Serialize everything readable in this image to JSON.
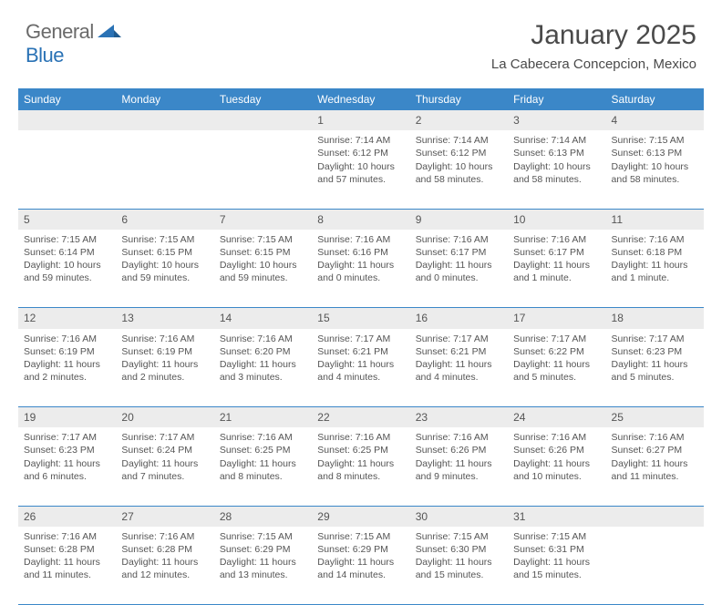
{
  "brand": {
    "part1": "General",
    "part2": "Blue"
  },
  "title": "January 2025",
  "location": "La Cabecera Concepcion, Mexico",
  "colors": {
    "header_bg": "#3b87c8",
    "header_text": "#ffffff",
    "daynum_bg": "#ececec",
    "body_text": "#555555",
    "rule": "#3b87c8",
    "brand_blue": "#2a72b5",
    "brand_gray": "#6a6a6a",
    "page_bg": "#ffffff"
  },
  "day_headers": [
    "Sunday",
    "Monday",
    "Tuesday",
    "Wednesday",
    "Thursday",
    "Friday",
    "Saturday"
  ],
  "weeks": [
    {
      "nums": [
        "",
        "",
        "",
        "1",
        "2",
        "3",
        "4"
      ],
      "cells": [
        null,
        null,
        null,
        {
          "sunrise": "Sunrise: 7:14 AM",
          "sunset": "Sunset: 6:12 PM",
          "day1": "Daylight: 10 hours",
          "day2": "and 57 minutes."
        },
        {
          "sunrise": "Sunrise: 7:14 AM",
          "sunset": "Sunset: 6:12 PM",
          "day1": "Daylight: 10 hours",
          "day2": "and 58 minutes."
        },
        {
          "sunrise": "Sunrise: 7:14 AM",
          "sunset": "Sunset: 6:13 PM",
          "day1": "Daylight: 10 hours",
          "day2": "and 58 minutes."
        },
        {
          "sunrise": "Sunrise: 7:15 AM",
          "sunset": "Sunset: 6:13 PM",
          "day1": "Daylight: 10 hours",
          "day2": "and 58 minutes."
        }
      ]
    },
    {
      "nums": [
        "5",
        "6",
        "7",
        "8",
        "9",
        "10",
        "11"
      ],
      "cells": [
        {
          "sunrise": "Sunrise: 7:15 AM",
          "sunset": "Sunset: 6:14 PM",
          "day1": "Daylight: 10 hours",
          "day2": "and 59 minutes."
        },
        {
          "sunrise": "Sunrise: 7:15 AM",
          "sunset": "Sunset: 6:15 PM",
          "day1": "Daylight: 10 hours",
          "day2": "and 59 minutes."
        },
        {
          "sunrise": "Sunrise: 7:15 AM",
          "sunset": "Sunset: 6:15 PM",
          "day1": "Daylight: 10 hours",
          "day2": "and 59 minutes."
        },
        {
          "sunrise": "Sunrise: 7:16 AM",
          "sunset": "Sunset: 6:16 PM",
          "day1": "Daylight: 11 hours",
          "day2": "and 0 minutes."
        },
        {
          "sunrise": "Sunrise: 7:16 AM",
          "sunset": "Sunset: 6:17 PM",
          "day1": "Daylight: 11 hours",
          "day2": "and 0 minutes."
        },
        {
          "sunrise": "Sunrise: 7:16 AM",
          "sunset": "Sunset: 6:17 PM",
          "day1": "Daylight: 11 hours",
          "day2": "and 1 minute."
        },
        {
          "sunrise": "Sunrise: 7:16 AM",
          "sunset": "Sunset: 6:18 PM",
          "day1": "Daylight: 11 hours",
          "day2": "and 1 minute."
        }
      ]
    },
    {
      "nums": [
        "12",
        "13",
        "14",
        "15",
        "16",
        "17",
        "18"
      ],
      "cells": [
        {
          "sunrise": "Sunrise: 7:16 AM",
          "sunset": "Sunset: 6:19 PM",
          "day1": "Daylight: 11 hours",
          "day2": "and 2 minutes."
        },
        {
          "sunrise": "Sunrise: 7:16 AM",
          "sunset": "Sunset: 6:19 PM",
          "day1": "Daylight: 11 hours",
          "day2": "and 2 minutes."
        },
        {
          "sunrise": "Sunrise: 7:16 AM",
          "sunset": "Sunset: 6:20 PM",
          "day1": "Daylight: 11 hours",
          "day2": "and 3 minutes."
        },
        {
          "sunrise": "Sunrise: 7:17 AM",
          "sunset": "Sunset: 6:21 PM",
          "day1": "Daylight: 11 hours",
          "day2": "and 4 minutes."
        },
        {
          "sunrise": "Sunrise: 7:17 AM",
          "sunset": "Sunset: 6:21 PM",
          "day1": "Daylight: 11 hours",
          "day2": "and 4 minutes."
        },
        {
          "sunrise": "Sunrise: 7:17 AM",
          "sunset": "Sunset: 6:22 PM",
          "day1": "Daylight: 11 hours",
          "day2": "and 5 minutes."
        },
        {
          "sunrise": "Sunrise: 7:17 AM",
          "sunset": "Sunset: 6:23 PM",
          "day1": "Daylight: 11 hours",
          "day2": "and 5 minutes."
        }
      ]
    },
    {
      "nums": [
        "19",
        "20",
        "21",
        "22",
        "23",
        "24",
        "25"
      ],
      "cells": [
        {
          "sunrise": "Sunrise: 7:17 AM",
          "sunset": "Sunset: 6:23 PM",
          "day1": "Daylight: 11 hours",
          "day2": "and 6 minutes."
        },
        {
          "sunrise": "Sunrise: 7:17 AM",
          "sunset": "Sunset: 6:24 PM",
          "day1": "Daylight: 11 hours",
          "day2": "and 7 minutes."
        },
        {
          "sunrise": "Sunrise: 7:16 AM",
          "sunset": "Sunset: 6:25 PM",
          "day1": "Daylight: 11 hours",
          "day2": "and 8 minutes."
        },
        {
          "sunrise": "Sunrise: 7:16 AM",
          "sunset": "Sunset: 6:25 PM",
          "day1": "Daylight: 11 hours",
          "day2": "and 8 minutes."
        },
        {
          "sunrise": "Sunrise: 7:16 AM",
          "sunset": "Sunset: 6:26 PM",
          "day1": "Daylight: 11 hours",
          "day2": "and 9 minutes."
        },
        {
          "sunrise": "Sunrise: 7:16 AM",
          "sunset": "Sunset: 6:26 PM",
          "day1": "Daylight: 11 hours",
          "day2": "and 10 minutes."
        },
        {
          "sunrise": "Sunrise: 7:16 AM",
          "sunset": "Sunset: 6:27 PM",
          "day1": "Daylight: 11 hours",
          "day2": "and 11 minutes."
        }
      ]
    },
    {
      "nums": [
        "26",
        "27",
        "28",
        "29",
        "30",
        "31",
        ""
      ],
      "cells": [
        {
          "sunrise": "Sunrise: 7:16 AM",
          "sunset": "Sunset: 6:28 PM",
          "day1": "Daylight: 11 hours",
          "day2": "and 11 minutes."
        },
        {
          "sunrise": "Sunrise: 7:16 AM",
          "sunset": "Sunset: 6:28 PM",
          "day1": "Daylight: 11 hours",
          "day2": "and 12 minutes."
        },
        {
          "sunrise": "Sunrise: 7:15 AM",
          "sunset": "Sunset: 6:29 PM",
          "day1": "Daylight: 11 hours",
          "day2": "and 13 minutes."
        },
        {
          "sunrise": "Sunrise: 7:15 AM",
          "sunset": "Sunset: 6:29 PM",
          "day1": "Daylight: 11 hours",
          "day2": "and 14 minutes."
        },
        {
          "sunrise": "Sunrise: 7:15 AM",
          "sunset": "Sunset: 6:30 PM",
          "day1": "Daylight: 11 hours",
          "day2": "and 15 minutes."
        },
        {
          "sunrise": "Sunrise: 7:15 AM",
          "sunset": "Sunset: 6:31 PM",
          "day1": "Daylight: 11 hours",
          "day2": "and 15 minutes."
        },
        null
      ]
    }
  ]
}
